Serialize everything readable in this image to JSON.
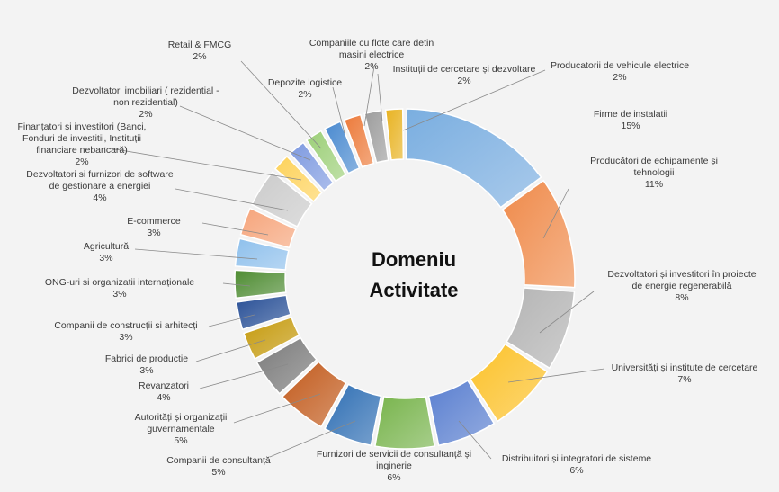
{
  "chart_data": {
    "type": "pie",
    "variant": "doughnut",
    "center_title": [
      "Domeniu",
      "Activitate"
    ],
    "legend": "none",
    "slices": [
      {
        "label": [
          "Firme de instalatii"
        ],
        "value": 15,
        "value_label": "15%",
        "color": "#7aaee0"
      },
      {
        "label": [
          "Producători de echipamente și",
          "tehnologii"
        ],
        "value": 11,
        "value_label": "11%",
        "color": "#ef8a4a"
      },
      {
        "label": [
          "Dezvoltatori și investitori în proiecte",
          "de energie regenerabilă"
        ],
        "value": 8,
        "value_label": "8%",
        "color": "#b4b4b4"
      },
      {
        "label": [
          "Universități și institute de cercetare"
        ],
        "value": 7,
        "value_label": "7%",
        "color": "#fcc22a"
      },
      {
        "label": [
          "Distribuitori și integratori de sisteme"
        ],
        "value": 6,
        "value_label": "6%",
        "color": "#5a7fd0"
      },
      {
        "label": [
          "Furnizori de servicii de consultanță și",
          "inginerie"
        ],
        "value": 6,
        "value_label": "6%",
        "color": "#78b44c"
      },
      {
        "label": [
          "Companii de consultanță"
        ],
        "value": 5,
        "value_label": "5%",
        "color": "#2f6fb4"
      },
      {
        "label": [
          "Autorități și organizații",
          "guvernamentale"
        ],
        "value": 5,
        "value_label": "5%",
        "color": "#c25a1c"
      },
      {
        "label": [
          "Revanzatori"
        ],
        "value": 4,
        "value_label": "4%",
        "color": "#7a7a7a"
      },
      {
        "label": [
          "Fabrici de productie"
        ],
        "value": 3,
        "value_label": "3%",
        "color": "#c59a0c"
      },
      {
        "label": [
          "Companii de construcții si arhitecți"
        ],
        "value": 3,
        "value_label": "3%",
        "color": "#284f96"
      },
      {
        "label": [
          "ONG-uri și organizații internaționale"
        ],
        "value": 3,
        "value_label": "3%",
        "color": "#4e8c32"
      },
      {
        "label": [
          "Agricultură"
        ],
        "value": 3,
        "value_label": "3%",
        "color": "#8ec0ec"
      },
      {
        "label": [
          "E-commerce"
        ],
        "value": 3,
        "value_label": "3%",
        "color": "#f6a47a"
      },
      {
        "label": [
          "Dezvoltatori si furnizori de software",
          "de gestionare a energiei"
        ],
        "value": 4,
        "value_label": "4%",
        "color": "#cbcbcb"
      },
      {
        "label": [
          "Finanțatori și investitori (Banci,",
          "Fonduri de investitii, Instituții",
          "financiare nebancară)"
        ],
        "value": 2,
        "value_label": "2%",
        "color": "#fdd25a"
      },
      {
        "label": [
          "Dezvoltatori imobiliari ( rezidential -",
          "non rezidential)"
        ],
        "value": 2,
        "value_label": "2%",
        "color": "#7e9ae0"
      },
      {
        "label": [
          "Retail & FMCG"
        ],
        "value": 2,
        "value_label": "2%",
        "color": "#9ccf78"
      },
      {
        "label": [
          "Depozite logistice"
        ],
        "value": 2,
        "value_label": "2%",
        "color": "#4a8ad0"
      },
      {
        "label": [
          "Companiile cu flote care detin",
          "masini electrice"
        ],
        "value": 2,
        "value_label": "2%",
        "color": "#ec7a3a"
      },
      {
        "label": [
          "Instituții de cercetare și dezvoltare"
        ],
        "value": 2,
        "value_label": "2%",
        "color": "#9c9c9c"
      },
      {
        "label": [
          "Producatorii de vehicule electrice"
        ],
        "value": 2,
        "value_label": "2%",
        "color": "#e8b220"
      }
    ]
  }
}
